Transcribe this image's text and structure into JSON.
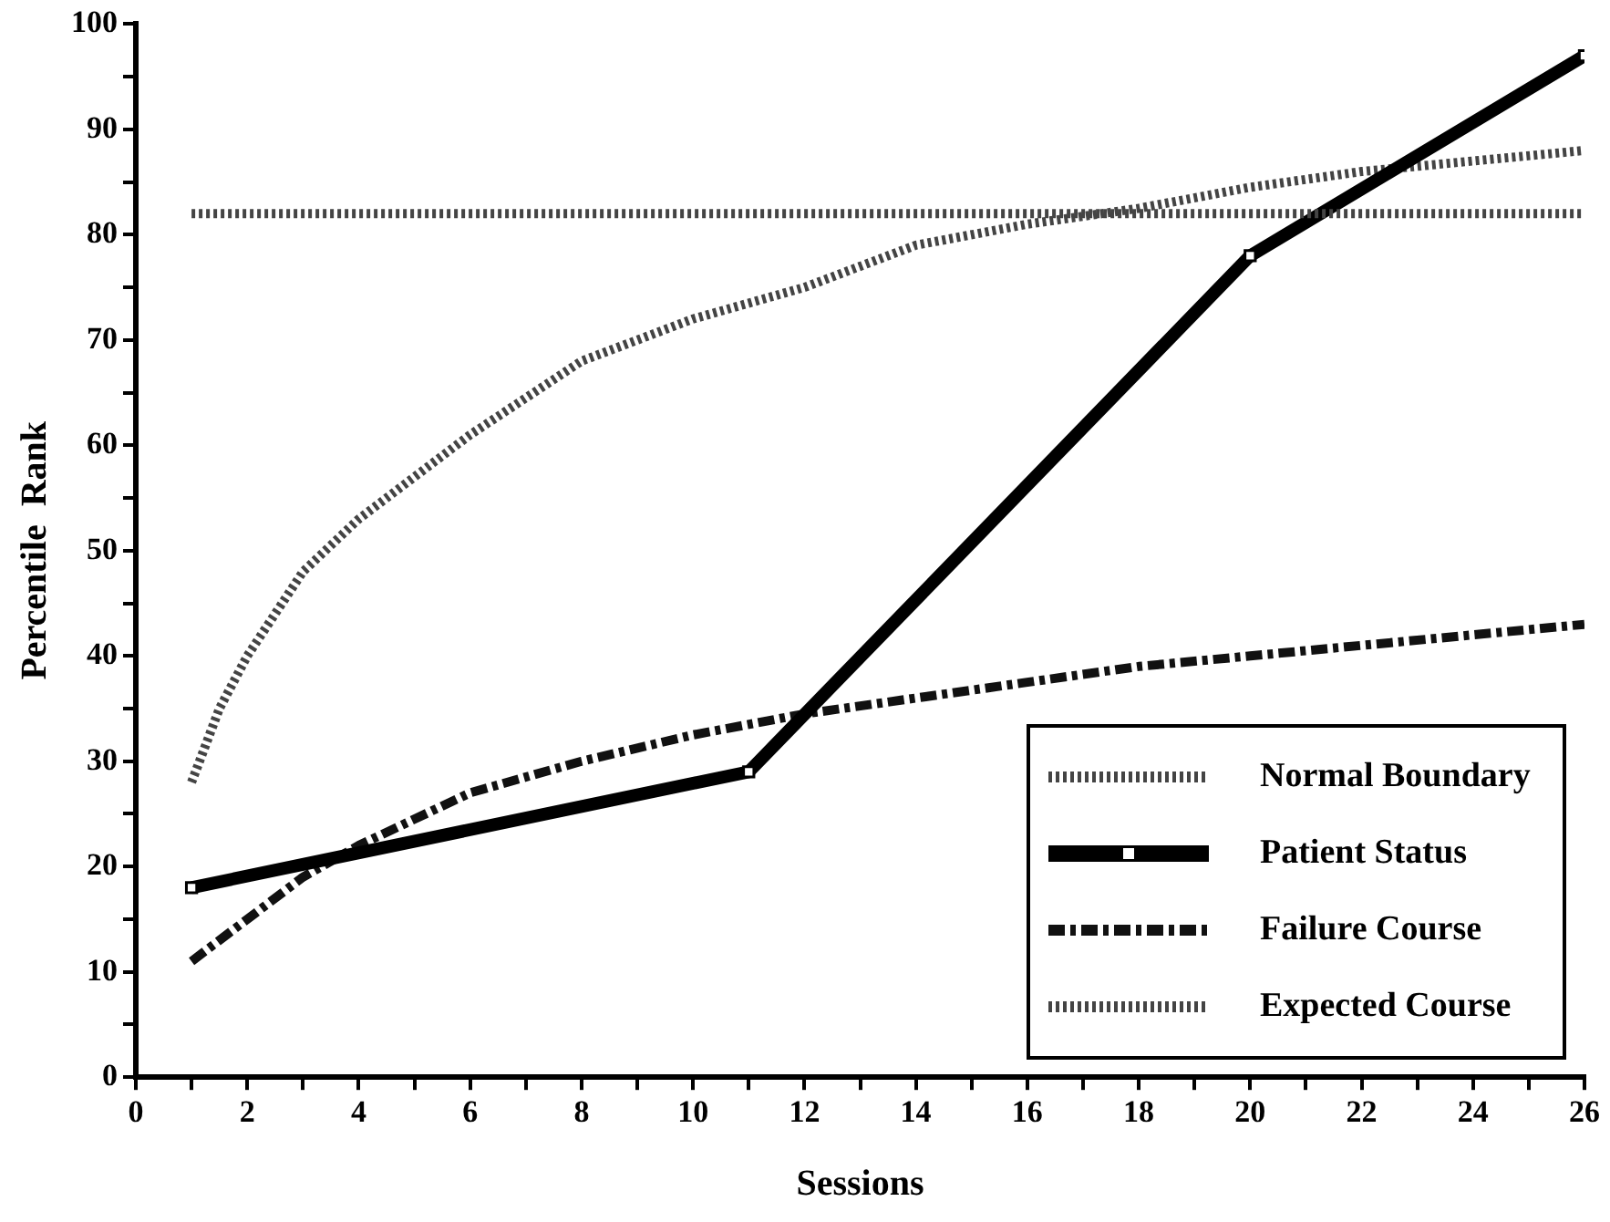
{
  "chart_data": {
    "type": "line",
    "xlabel": "Sessions",
    "ylabel": "Percentile  Rank",
    "xlim": [
      0,
      26
    ],
    "xticks": [
      0,
      {
        "value": 1,
        "label": null
      },
      2,
      {
        "value": 3,
        "label": null
      },
      4,
      {
        "value": 5,
        "label": null
      },
      6,
      {
        "value": 7,
        "label": null
      },
      8,
      {
        "value": 9,
        "label": null
      },
      10,
      {
        "value": 11,
        "label": null
      },
      12,
      {
        "value": 13,
        "label": null
      },
      14,
      {
        "value": 15,
        "label": null
      },
      16,
      {
        "value": 17,
        "label": null
      },
      18,
      {
        "value": 19,
        "label": null
      },
      20,
      {
        "value": 21,
        "label": null
      },
      22,
      {
        "value": 23,
        "label": null
      },
      24,
      {
        "value": 25,
        "label": null
      },
      26
    ],
    "ylim": [
      0,
      100
    ],
    "yticks": [
      0,
      {
        "value": 5,
        "label": null
      },
      10,
      {
        "value": 15,
        "label": null
      },
      20,
      {
        "value": 25,
        "label": null
      },
      30,
      {
        "value": 35,
        "label": null
      },
      40,
      {
        "value": 45,
        "label": null
      },
      50,
      {
        "value": 55,
        "label": null
      },
      60,
      {
        "value": 65,
        "label": null
      },
      70,
      {
        "value": 75,
        "label": null
      },
      80,
      {
        "value": 85,
        "label": null
      },
      90,
      {
        "value": 95,
        "label": null
      },
      100
    ],
    "grid": false,
    "legend": "bottom right",
    "series": [
      {
        "name": "Normal Boundary",
        "color": "#444444",
        "line_style": "dotted",
        "marker": "none",
        "x": [
          1,
          26
        ],
        "values": [
          82,
          82
        ]
      },
      {
        "name": "Patient Status",
        "color": "#000000",
        "line_style": "solid",
        "marker": "square",
        "x": [
          1,
          11,
          20,
          26
        ],
        "values": [
          18,
          29,
          78,
          97
        ]
      },
      {
        "name": "Failure Course",
        "color": "#111111",
        "line_style": "dashed",
        "marker": "none",
        "x": [
          1,
          2,
          3,
          4,
          6,
          8,
          10,
          12,
          14,
          16,
          18,
          20,
          22,
          24,
          26
        ],
        "values": [
          11,
          15,
          19,
          22,
          27,
          30,
          32.5,
          34.5,
          36,
          37.5,
          39,
          40,
          41,
          42,
          43
        ]
      },
      {
        "name": "Expected Course",
        "color": "#444444",
        "line_style": "dotted",
        "marker": "none",
        "x": [
          1,
          1.5,
          2,
          3,
          4,
          5,
          6,
          8,
          10,
          12,
          14,
          16,
          18,
          20,
          22,
          24,
          26
        ],
        "values": [
          28,
          35,
          40,
          48,
          53,
          57,
          61,
          68,
          72,
          75,
          79,
          81,
          82.5,
          84.5,
          86,
          87,
          88
        ]
      }
    ]
  }
}
